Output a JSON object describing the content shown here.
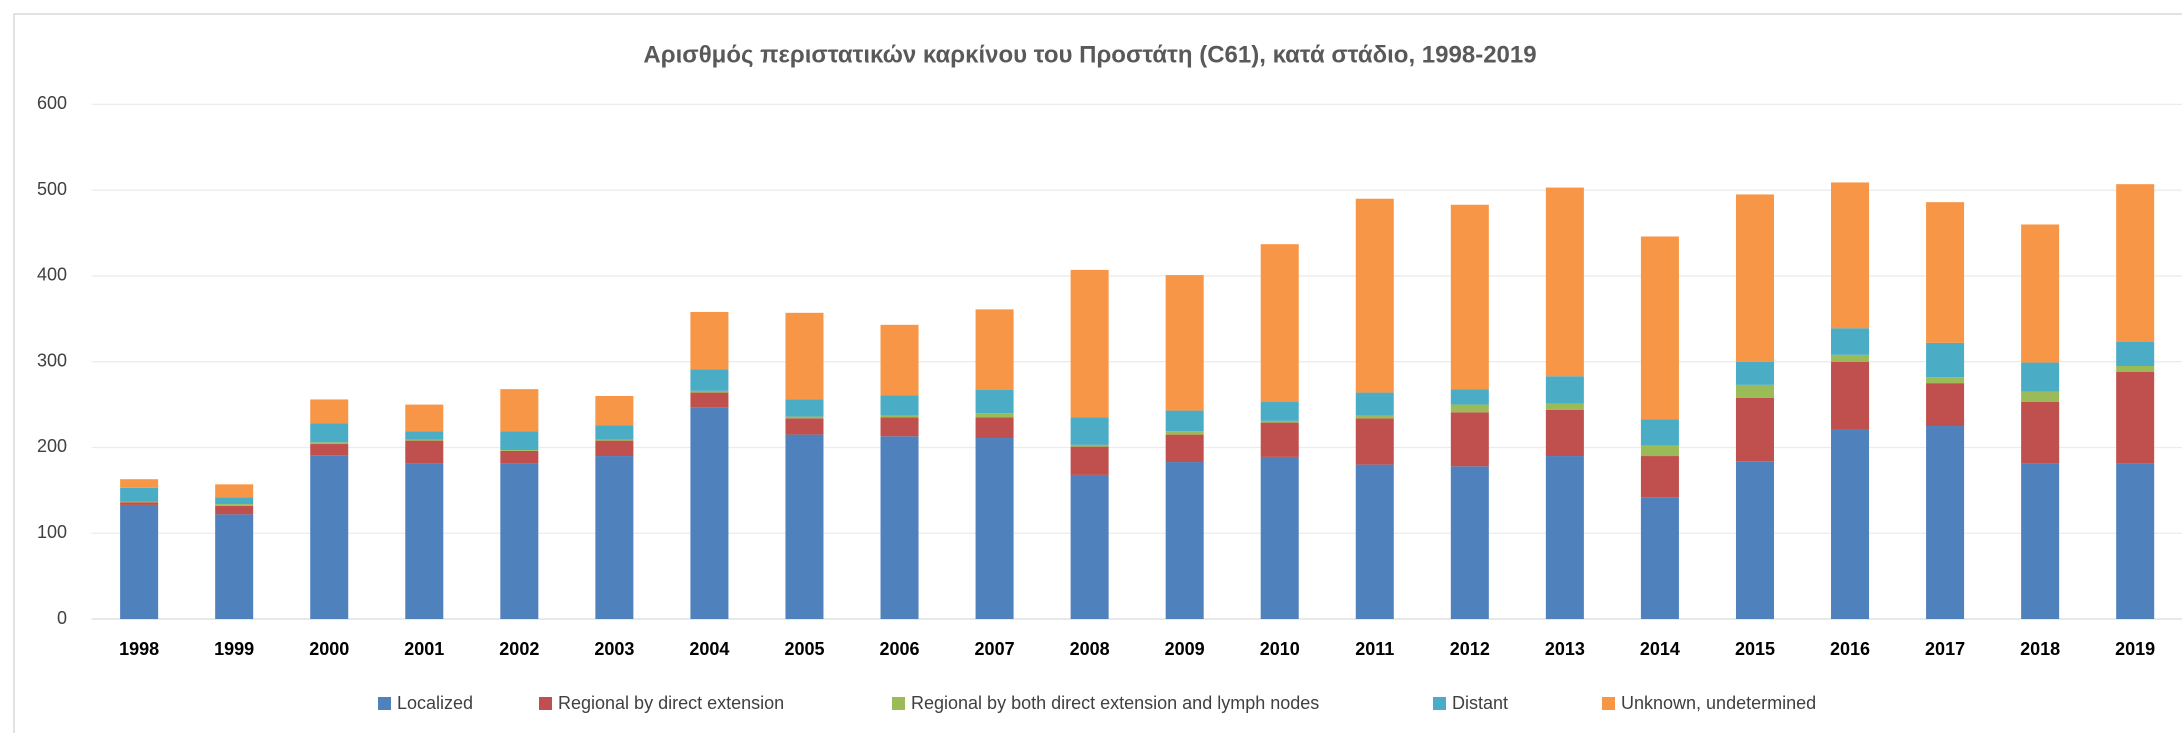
{
  "chart_data": {
    "type": "stacked_bar",
    "title": "Αρισθμός περιστατικών καρκίνου του Προστάτη (C61), κατά στάδιο, 1998-2019",
    "categories": [
      "1998",
      "1999",
      "2000",
      "2001",
      "2002",
      "2003",
      "2004",
      "2005",
      "2006",
      "2007",
      "2008",
      "2009",
      "2010",
      "2011",
      "2012",
      "2013",
      "2014",
      "2015",
      "2016",
      "2017",
      "2018",
      "2019"
    ],
    "series": [
      {
        "name": "Localized",
        "color": "#4f81bd",
        "values": [
          133,
          122,
          191,
          181,
          181,
          190,
          247,
          215,
          213,
          211,
          168,
          183,
          189,
          180,
          178,
          190,
          142,
          184,
          221,
          225,
          181,
          181
        ]
      },
      {
        "name": "Regional by direct extension",
        "color": "#c0504d",
        "values": [
          3,
          10,
          13,
          27,
          15,
          18,
          17,
          19,
          22,
          24,
          33,
          32,
          40,
          54,
          63,
          54,
          48,
          74,
          79,
          50,
          72,
          107
        ]
      },
      {
        "name": "Regional by both direct extension and lymph nodes",
        "color": "#9bbb59",
        "values": [
          1,
          2,
          2,
          1,
          1,
          1,
          2,
          2,
          2,
          5,
          2,
          4,
          2,
          3,
          9,
          7,
          12,
          15,
          8,
          7,
          12,
          7
        ]
      },
      {
        "name": "Distant",
        "color": "#4bacc6",
        "values": [
          16,
          8,
          22,
          10,
          22,
          17,
          25,
          20,
          24,
          27,
          32,
          24,
          22,
          27,
          18,
          32,
          31,
          27,
          31,
          40,
          34,
          28
        ]
      },
      {
        "name": "Unknown, undetermined",
        "color": "#f79646",
        "values": [
          10,
          15,
          28,
          31,
          49,
          34,
          67,
          101,
          82,
          94,
          172,
          158,
          184,
          226,
          215,
          220,
          213,
          195,
          170,
          164,
          161,
          184
        ]
      }
    ],
    "ylim": [
      0,
      600
    ],
    "yticks": [
      0,
      100,
      200,
      300,
      400,
      500,
      600
    ],
    "grid": true,
    "legend": "bottom"
  }
}
